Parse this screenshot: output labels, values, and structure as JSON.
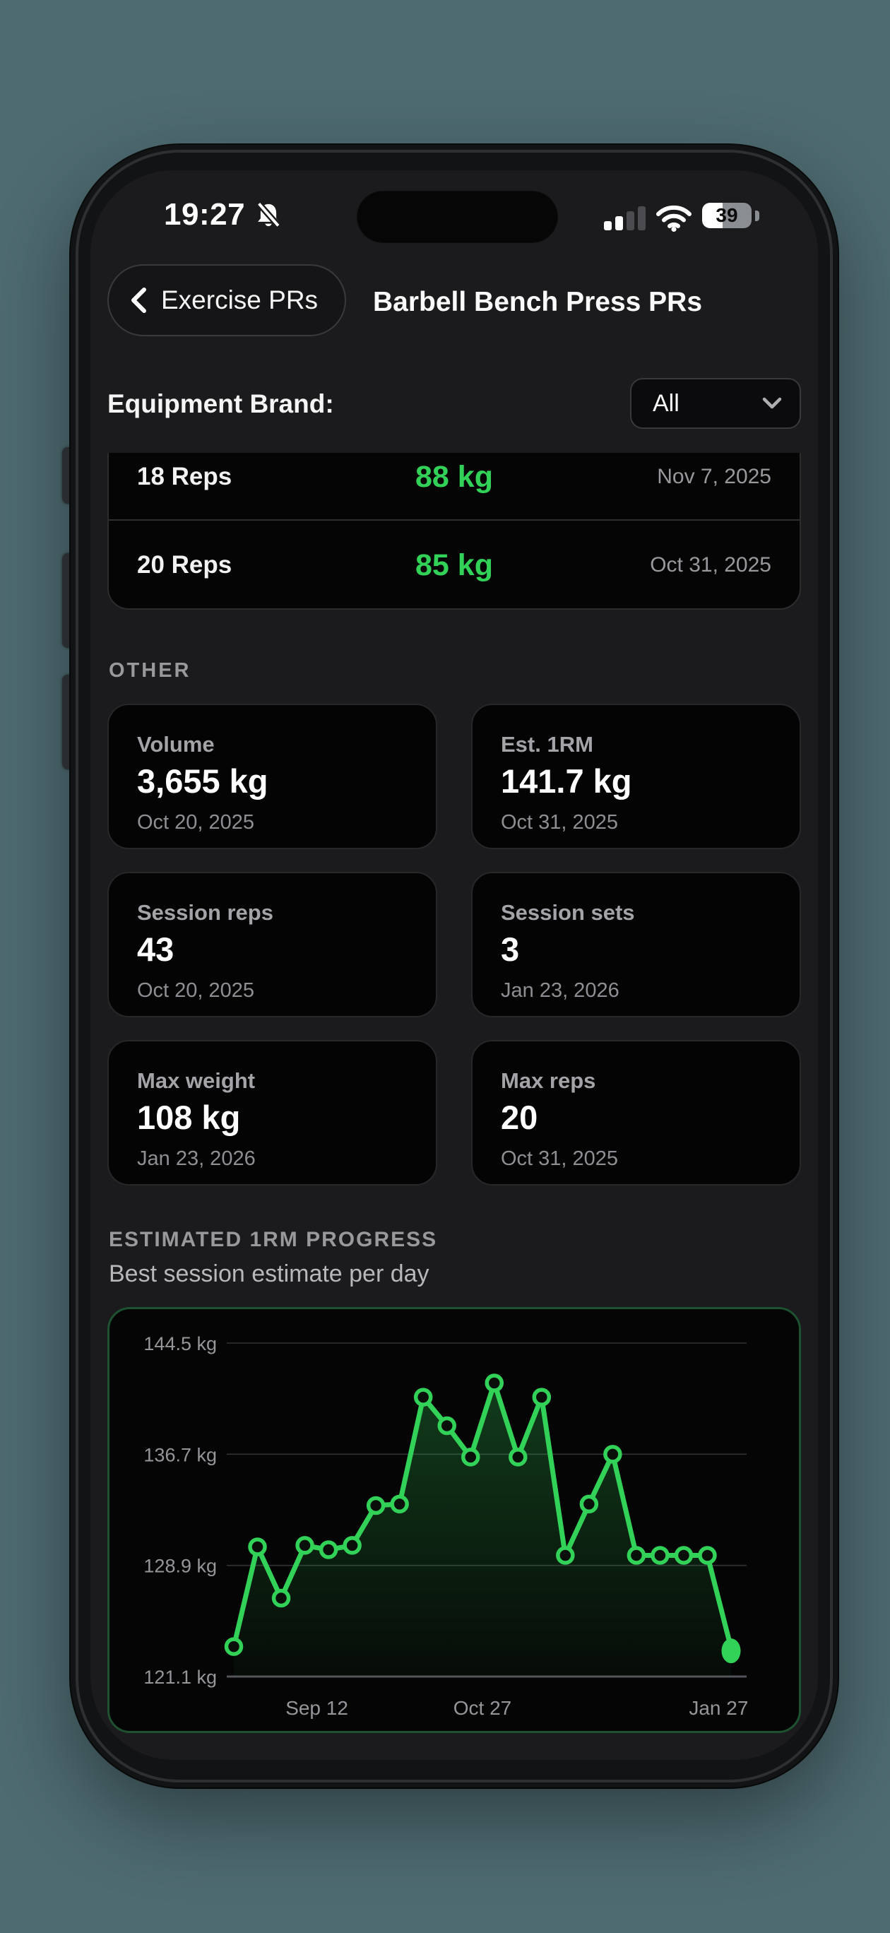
{
  "colors": {
    "accent_green": "#32d158",
    "backdrop_teal": "#4e6b71",
    "chart_border": "#1e5130"
  },
  "status_bar": {
    "time": "19:27",
    "battery_percent": "39"
  },
  "nav": {
    "back_label": "Exercise PRs",
    "title": "Barbell Bench Press PRs"
  },
  "filter": {
    "label": "Equipment Brand:",
    "selected": "All"
  },
  "rep_records": [
    {
      "reps": "18 Reps",
      "weight": "88 kg",
      "date": "Nov 7, 2025"
    },
    {
      "reps": "20 Reps",
      "weight": "85 kg",
      "date": "Oct 31, 2025"
    }
  ],
  "other": {
    "heading": "OTHER",
    "cards": [
      {
        "label": "Volume",
        "value": "3,655 kg",
        "date": "Oct 20, 2025"
      },
      {
        "label": "Est. 1RM",
        "value": "141.7 kg",
        "date": "Oct 31, 2025"
      },
      {
        "label": "Session reps",
        "value": "43",
        "date": "Oct 20, 2025"
      },
      {
        "label": "Session sets",
        "value": "3",
        "date": "Jan 23, 2026"
      },
      {
        "label": "Max weight",
        "value": "108 kg",
        "date": "Jan 23, 2026"
      },
      {
        "label": "Max reps",
        "value": "20",
        "date": "Oct 31, 2025"
      }
    ]
  },
  "progress": {
    "heading": "ESTIMATED 1RM PROGRESS",
    "subheading": "Best session estimate per day"
  },
  "chart_data": {
    "type": "line",
    "title": "ESTIMATED 1RM PROGRESS",
    "subtitle": "Best session estimate per day",
    "unit": "kg",
    "ylim": [
      121.1,
      144.5
    ],
    "y_ticks": [
      {
        "label": "144.5 kg",
        "value": 144.5
      },
      {
        "label": "136.7 kg",
        "value": 136.7
      },
      {
        "label": "128.9 kg",
        "value": 128.9
      },
      {
        "label": "121.1 kg",
        "value": 121.1
      }
    ],
    "x_ticks": [
      {
        "label": "Sep 12",
        "pos": 0.167
      },
      {
        "label": "Oct 27",
        "pos": 0.5
      },
      {
        "label": "Jan 27",
        "pos": 0.975
      }
    ],
    "values": [
      123.2,
      130.2,
      126.6,
      130.3,
      130.0,
      130.3,
      133.1,
      133.2,
      140.7,
      138.7,
      136.5,
      141.7,
      136.5,
      140.7,
      129.6,
      133.2,
      136.7,
      129.6,
      129.6,
      129.6,
      129.6,
      123.1
    ],
    "line_color": "#32d158",
    "grid": "horizontal",
    "legend": "none"
  }
}
